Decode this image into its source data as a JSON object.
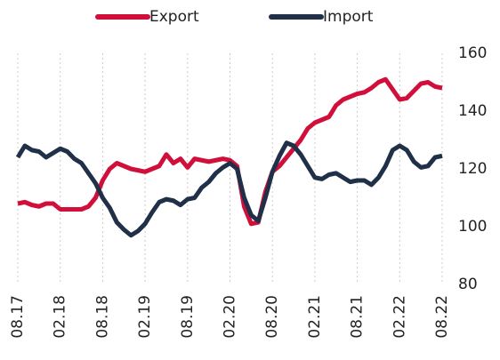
{
  "chart_data": {
    "type": "line",
    "categories": [
      "08.17",
      null,
      null,
      null,
      null,
      null,
      "02.18",
      null,
      null,
      null,
      null,
      null,
      "08.18",
      null,
      null,
      null,
      null,
      null,
      "02.19",
      null,
      null,
      null,
      null,
      null,
      "08.19",
      null,
      null,
      null,
      null,
      null,
      "02.20",
      null,
      null,
      null,
      null,
      null,
      "08.20",
      null,
      null,
      null,
      null,
      null,
      "02.21",
      null,
      null,
      null,
      null,
      null,
      "08.21",
      null,
      null,
      null,
      null,
      null,
      "02.22",
      null,
      null,
      null,
      null,
      null,
      "08.22"
    ],
    "series": [
      {
        "name": "Export",
        "color": "#d0103a",
        "values": [
          108,
          108.5,
          107.5,
          107,
          108,
          108,
          106,
          106,
          106,
          106,
          107,
          110,
          116,
          120,
          122,
          121,
          120,
          119.5,
          119,
          120,
          121,
          125,
          122,
          123.5,
          120.5,
          123.5,
          123,
          122.5,
          123,
          123.5,
          123,
          121,
          107,
          101,
          101.5,
          112,
          119,
          121,
          124,
          127,
          130,
          134,
          136,
          137,
          138,
          142,
          144,
          145,
          146,
          146.5,
          148,
          150,
          151,
          147.5,
          144,
          144.5,
          147,
          149.5,
          150,
          148.5,
          148
        ]
      },
      {
        "name": "Import",
        "color": "#1f3048",
        "values": [
          124,
          128,
          126.5,
          126,
          124,
          125.5,
          127,
          126,
          123.5,
          122,
          118.5,
          115,
          110,
          106.5,
          101.5,
          99,
          97,
          98.5,
          101,
          105,
          108.5,
          109.5,
          109,
          107.5,
          109.5,
          110,
          113.5,
          115.5,
          118.5,
          120.5,
          122,
          120,
          110,
          104,
          102,
          110,
          119,
          124.5,
          129,
          128,
          125,
          121,
          117,
          116.5,
          118,
          118.5,
          117,
          115.5,
          116,
          116,
          114.5,
          117,
          121,
          126.5,
          128,
          126.5,
          122.5,
          120.5,
          121,
          124,
          124.5
        ]
      }
    ],
    "ylim": [
      80,
      160
    ],
    "yticks": [
      80,
      100,
      120,
      140,
      160
    ],
    "y_axis_side": "right",
    "xgrid": true,
    "legend": "top"
  }
}
